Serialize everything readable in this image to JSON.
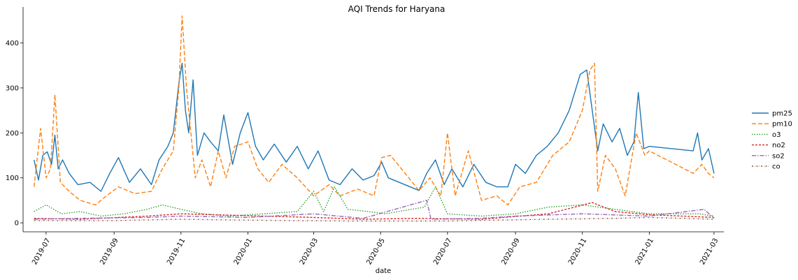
{
  "chart_data": {
    "type": "line",
    "title": "AQI Trends for Haryana",
    "xlabel": "date",
    "ylabel": "",
    "xlim": [
      "2019-06-10",
      "2021-03-10"
    ],
    "ylim": [
      -20,
      480
    ],
    "x_ticks": [
      "2019-07",
      "2019-09",
      "2019-11",
      "2020-01",
      "2020-03",
      "2020-05",
      "2020-07",
      "2020-09",
      "2020-11",
      "2021-01",
      "2021-03"
    ],
    "y_ticks": [
      0,
      100,
      200,
      300,
      400
    ],
    "grid": false,
    "legend_position": "right",
    "series": [
      {
        "name": "pm25",
        "color": "#1f77b4",
        "dash": "solid",
        "points": [
          [
            "2019-06-20",
            140
          ],
          [
            "2019-06-24",
            95
          ],
          [
            "2019-06-28",
            150
          ],
          [
            "2019-07-02",
            158
          ],
          [
            "2019-07-06",
            130
          ],
          [
            "2019-07-09",
            195
          ],
          [
            "2019-07-12",
            120
          ],
          [
            "2019-07-16",
            140
          ],
          [
            "2019-07-22",
            110
          ],
          [
            "2019-07-30",
            85
          ],
          [
            "2019-08-10",
            90
          ],
          [
            "2019-08-20",
            70
          ],
          [
            "2019-08-28",
            110
          ],
          [
            "2019-09-05",
            145
          ],
          [
            "2019-09-15",
            90
          ],
          [
            "2019-09-25",
            120
          ],
          [
            "2019-10-05",
            85
          ],
          [
            "2019-10-12",
            140
          ],
          [
            "2019-10-20",
            170
          ],
          [
            "2019-10-25",
            200
          ],
          [
            "2019-10-30",
            310
          ],
          [
            "2019-11-02",
            355
          ],
          [
            "2019-11-05",
            250
          ],
          [
            "2019-11-08",
            200
          ],
          [
            "2019-11-12",
            318
          ],
          [
            "2019-11-16",
            150
          ],
          [
            "2019-11-22",
            200
          ],
          [
            "2019-11-28",
            180
          ],
          [
            "2019-12-05",
            160
          ],
          [
            "2019-12-10",
            240
          ],
          [
            "2019-12-18",
            130
          ],
          [
            "2019-12-25",
            200
          ],
          [
            "2020-01-01",
            245
          ],
          [
            "2020-01-08",
            170
          ],
          [
            "2020-01-15",
            140
          ],
          [
            "2020-01-25",
            175
          ],
          [
            "2020-02-05",
            135
          ],
          [
            "2020-02-15",
            170
          ],
          [
            "2020-02-25",
            120
          ],
          [
            "2020-03-05",
            160
          ],
          [
            "2020-03-15",
            95
          ],
          [
            "2020-03-25",
            85
          ],
          [
            "2020-04-05",
            120
          ],
          [
            "2020-04-15",
            95
          ],
          [
            "2020-04-25",
            105
          ],
          [
            "2020-05-02",
            135
          ],
          [
            "2020-05-08",
            100
          ],
          [
            "2020-06-05",
            72
          ],
          [
            "2020-06-12",
            110
          ],
          [
            "2020-06-20",
            140
          ],
          [
            "2020-06-28",
            85
          ],
          [
            "2020-07-05",
            120
          ],
          [
            "2020-07-15",
            80
          ],
          [
            "2020-07-25",
            130
          ],
          [
            "2020-08-05",
            90
          ],
          [
            "2020-08-15",
            80
          ],
          [
            "2020-08-25",
            80
          ],
          [
            "2020-09-01",
            130
          ],
          [
            "2020-09-10",
            110
          ],
          [
            "2020-09-20",
            150
          ],
          [
            "2020-09-30",
            170
          ],
          [
            "2020-10-10",
            200
          ],
          [
            "2020-10-20",
            250
          ],
          [
            "2020-10-30",
            330
          ],
          [
            "2020-11-05",
            340
          ],
          [
            "2020-11-10",
            250
          ],
          [
            "2020-11-15",
            160
          ],
          [
            "2020-11-20",
            220
          ],
          [
            "2020-11-28",
            180
          ],
          [
            "2020-12-05",
            210
          ],
          [
            "2020-12-12",
            150
          ],
          [
            "2020-12-18",
            180
          ],
          [
            "2020-12-22",
            290
          ],
          [
            "2020-12-27",
            165
          ],
          [
            "2021-01-01",
            170
          ],
          [
            "2021-02-10",
            160
          ],
          [
            "2021-02-14",
            200
          ],
          [
            "2021-02-18",
            140
          ],
          [
            "2021-02-24",
            165
          ],
          [
            "2021-03-01",
            110
          ]
        ]
      },
      {
        "name": "pm10",
        "color": "#ff7f0e",
        "dash": "6,3",
        "points": [
          [
            "2019-06-20",
            80
          ],
          [
            "2019-06-26",
            210
          ],
          [
            "2019-07-01",
            100
          ],
          [
            "2019-07-05",
            120
          ],
          [
            "2019-07-09",
            285
          ],
          [
            "2019-07-14",
            90
          ],
          [
            "2019-07-22",
            70
          ],
          [
            "2019-08-01",
            50
          ],
          [
            "2019-08-15",
            40
          ],
          [
            "2019-08-25",
            60
          ],
          [
            "2019-09-05",
            80
          ],
          [
            "2019-09-20",
            65
          ],
          [
            "2019-10-05",
            70
          ],
          [
            "2019-10-15",
            120
          ],
          [
            "2019-10-25",
            160
          ],
          [
            "2019-10-30",
            300
          ],
          [
            "2019-11-02",
            460
          ],
          [
            "2019-11-06",
            300
          ],
          [
            "2019-11-10",
            200
          ],
          [
            "2019-11-14",
            100
          ],
          [
            "2019-11-20",
            140
          ],
          [
            "2019-11-28",
            80
          ],
          [
            "2019-12-05",
            160
          ],
          [
            "2019-12-12",
            100
          ],
          [
            "2019-12-20",
            170
          ],
          [
            "2020-01-01",
            180
          ],
          [
            "2020-01-10",
            120
          ],
          [
            "2020-01-20",
            90
          ],
          [
            "2020-02-01",
            130
          ],
          [
            "2020-02-15",
            100
          ],
          [
            "2020-03-01",
            60
          ],
          [
            "2020-03-15",
            85
          ],
          [
            "2020-03-25",
            60
          ],
          [
            "2020-04-10",
            75
          ],
          [
            "2020-04-25",
            60
          ],
          [
            "2020-05-02",
            145
          ],
          [
            "2020-05-10",
            150
          ],
          [
            "2020-06-05",
            72
          ],
          [
            "2020-06-15",
            100
          ],
          [
            "2020-06-25",
            60
          ],
          [
            "2020-07-01",
            200
          ],
          [
            "2020-07-08",
            60
          ],
          [
            "2020-07-20",
            160
          ],
          [
            "2020-08-01",
            50
          ],
          [
            "2020-08-15",
            60
          ],
          [
            "2020-08-25",
            40
          ],
          [
            "2020-09-05",
            80
          ],
          [
            "2020-09-20",
            90
          ],
          [
            "2020-10-05",
            150
          ],
          [
            "2020-10-20",
            180
          ],
          [
            "2020-11-01",
            250
          ],
          [
            "2020-11-08",
            340
          ],
          [
            "2020-11-12",
            355
          ],
          [
            "2020-11-15",
            70
          ],
          [
            "2020-11-22",
            150
          ],
          [
            "2020-12-01",
            120
          ],
          [
            "2020-12-10",
            60
          ],
          [
            "2020-12-20",
            200
          ],
          [
            "2020-12-28",
            150
          ],
          [
            "2021-01-01",
            160
          ],
          [
            "2021-02-10",
            110
          ],
          [
            "2021-02-18",
            130
          ],
          [
            "2021-02-24",
            110
          ],
          [
            "2021-03-01",
            100
          ]
        ]
      },
      {
        "name": "o3",
        "color": "#2ca02c",
        "dash": "1.5,2",
        "points": [
          [
            "2019-06-20",
            25
          ],
          [
            "2019-07-01",
            40
          ],
          [
            "2019-07-15",
            20
          ],
          [
            "2019-08-01",
            25
          ],
          [
            "2019-08-20",
            15
          ],
          [
            "2019-09-10",
            20
          ],
          [
            "2019-10-01",
            30
          ],
          [
            "2019-10-15",
            40
          ],
          [
            "2019-11-01",
            30
          ],
          [
            "2019-11-20",
            20
          ],
          [
            "2019-12-15",
            15
          ],
          [
            "2020-01-15",
            20
          ],
          [
            "2020-02-15",
            25
          ],
          [
            "2020-03-01",
            70
          ],
          [
            "2020-03-10",
            25
          ],
          [
            "2020-03-20",
            80
          ],
          [
            "2020-04-01",
            30
          ],
          [
            "2020-04-20",
            25
          ],
          [
            "2020-05-05",
            20
          ],
          [
            "2020-06-10",
            35
          ],
          [
            "2020-06-20",
            80
          ],
          [
            "2020-07-01",
            20
          ],
          [
            "2020-08-01",
            15
          ],
          [
            "2020-09-01",
            20
          ],
          [
            "2020-10-01",
            35
          ],
          [
            "2020-11-01",
            40
          ],
          [
            "2020-12-01",
            30
          ],
          [
            "2021-01-01",
            20
          ],
          [
            "2021-02-15",
            20
          ],
          [
            "2021-03-01",
            15
          ]
        ]
      },
      {
        "name": "no2",
        "color": "#d62728",
        "dash": "3,2",
        "points": [
          [
            "2019-06-20",
            10
          ],
          [
            "2019-08-01",
            8
          ],
          [
            "2019-10-01",
            15
          ],
          [
            "2019-11-01",
            20
          ],
          [
            "2019-12-01",
            18
          ],
          [
            "2020-01-15",
            15
          ],
          [
            "2020-03-01",
            12
          ],
          [
            "2020-04-15",
            8
          ],
          [
            "2020-06-01",
            10
          ],
          [
            "2020-08-01",
            8
          ],
          [
            "2020-10-01",
            20
          ],
          [
            "2020-11-10",
            45
          ],
          [
            "2020-12-01",
            25
          ],
          [
            "2021-01-01",
            18
          ],
          [
            "2021-03-01",
            12
          ]
        ]
      },
      {
        "name": "so2",
        "color": "#9467bd",
        "dash": "6,2,1.5,2",
        "points": [
          [
            "2019-06-20",
            8
          ],
          [
            "2019-08-01",
            10
          ],
          [
            "2019-10-01",
            12
          ],
          [
            "2019-11-01",
            15
          ],
          [
            "2020-01-01",
            12
          ],
          [
            "2020-03-01",
            20
          ],
          [
            "2020-04-15",
            10
          ],
          [
            "2020-06-12",
            50
          ],
          [
            "2020-06-16",
            8
          ],
          [
            "2020-08-01",
            10
          ],
          [
            "2020-09-01",
            15
          ],
          [
            "2020-11-01",
            20
          ],
          [
            "2021-01-01",
            15
          ],
          [
            "2021-02-20",
            30
          ],
          [
            "2021-03-01",
            10
          ]
        ]
      },
      {
        "name": "co",
        "color": "#8c564b",
        "dash": "2,2,0.5,2",
        "points": [
          [
            "2019-06-20",
            5
          ],
          [
            "2019-09-01",
            5
          ],
          [
            "2019-11-01",
            8
          ],
          [
            "2020-01-01",
            6
          ],
          [
            "2020-04-01",
            4
          ],
          [
            "2020-07-01",
            4
          ],
          [
            "2020-10-01",
            8
          ],
          [
            "2020-12-01",
            10
          ],
          [
            "2021-01-01",
            12
          ],
          [
            "2021-03-01",
            8
          ]
        ]
      }
    ]
  }
}
